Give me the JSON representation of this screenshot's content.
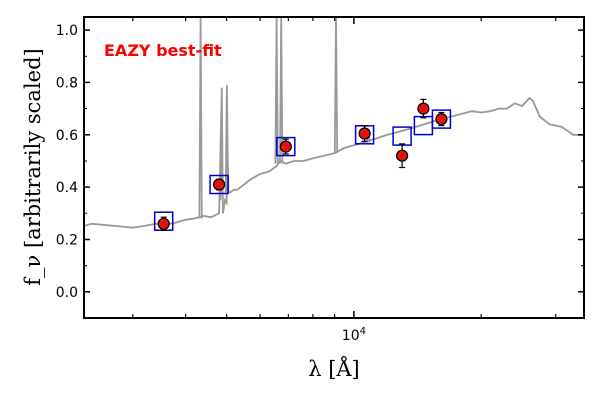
{
  "chart_data": {
    "type": "scatter",
    "title": "",
    "xlabel": "λ [Å]",
    "ylabel": "f_ν [arbitrarily scaled]",
    "x_scale": "log",
    "xlim": [
      2300,
      35000
    ],
    "ylim": [
      -0.1,
      1.05
    ],
    "x_ticks": [
      {
        "value": 10000,
        "label": "10^4"
      }
    ],
    "y_ticks": [
      {
        "value": 0.0,
        "label": "0.0"
      },
      {
        "value": 0.2,
        "label": "0.2"
      },
      {
        "value": 0.4,
        "label": "0.4"
      },
      {
        "value": 0.6,
        "label": "0.6"
      },
      {
        "value": 0.8,
        "label": "0.8"
      },
      {
        "value": 1.0,
        "label": "1.0"
      }
    ],
    "grid": false,
    "annotation": {
      "text": "EAZY best-fit",
      "color": "#ff0000"
    },
    "series": [
      {
        "kind": "line",
        "color": "#999999",
        "x": [
          2300,
          2400,
          2600,
          2800,
          3000,
          3200,
          3400,
          3600,
          3800,
          4000,
          4200,
          4400,
          4600,
          4800,
          4870,
          4900,
          4960,
          5000,
          5010,
          5050,
          5100,
          5200,
          5300,
          5500,
          5700,
          6000,
          6300,
          6560,
          6700,
          6900,
          7200,
          7600,
          8000,
          8500,
          9000,
          9500,
          10000,
          10500,
          11000,
          12000,
          13000,
          14000,
          15000,
          16000,
          17000,
          18000,
          19000,
          20000,
          21000,
          22000,
          23000,
          24000,
          25000,
          26000,
          26500,
          27500,
          29000,
          31000,
          33000,
          35000
        ],
        "y": [
          0.252,
          0.26,
          0.255,
          0.25,
          0.245,
          0.252,
          0.26,
          0.258,
          0.265,
          0.275,
          0.28,
          0.29,
          0.285,
          0.3,
          0.78,
          0.3,
          0.35,
          0.34,
          0.6,
          0.38,
          0.38,
          0.39,
          0.39,
          0.41,
          0.43,
          0.45,
          0.46,
          0.48,
          0.5,
          0.49,
          0.5,
          0.5,
          0.51,
          0.52,
          0.53,
          0.55,
          0.56,
          0.57,
          0.58,
          0.6,
          0.615,
          0.63,
          0.645,
          0.66,
          0.67,
          0.68,
          0.69,
          0.685,
          0.69,
          0.7,
          0.7,
          0.72,
          0.71,
          0.74,
          0.73,
          0.67,
          0.64,
          0.63,
          0.6,
          0.6
        ]
      },
      {
        "kind": "emission_lines",
        "color": "#999999",
        "lines": [
          {
            "x": 4340,
            "y_top": 1.05,
            "y_base": 0.28
          },
          {
            "x": 4861,
            "y_top": 0.58,
            "y_base": 0.35
          },
          {
            "x": 5007,
            "y_top": 0.79,
            "y_base": 0.38
          },
          {
            "x": 6563,
            "y_top": 1.05,
            "y_base": 0.49
          },
          {
            "x": 6730,
            "y_top": 1.05,
            "y_base": 0.49
          },
          {
            "x": 9069,
            "y_top": 1.05,
            "y_base": 0.53
          },
          {
            "x": 10830,
            "y_top": 0.62,
            "y_base": 0.57
          }
        ]
      },
      {
        "kind": "model_photometry",
        "marker": "square",
        "color": "#0000cc",
        "x": [
          3550,
          4800,
          6900,
          10600,
          13000,
          14600,
          16100
        ],
        "y": [
          0.27,
          0.41,
          0.555,
          0.6,
          0.595,
          0.635,
          0.66
        ]
      },
      {
        "kind": "observed",
        "marker": "circle",
        "color": "#e0140c",
        "x": [
          3550,
          4800,
          6900,
          10600,
          13000,
          14600,
          16100
        ],
        "y": [
          0.26,
          0.41,
          0.555,
          0.605,
          0.52,
          0.7,
          0.66
        ],
        "yerr": [
          0.025,
          0.02,
          0.028,
          0.03,
          0.045,
          0.035,
          0.025
        ]
      }
    ]
  }
}
